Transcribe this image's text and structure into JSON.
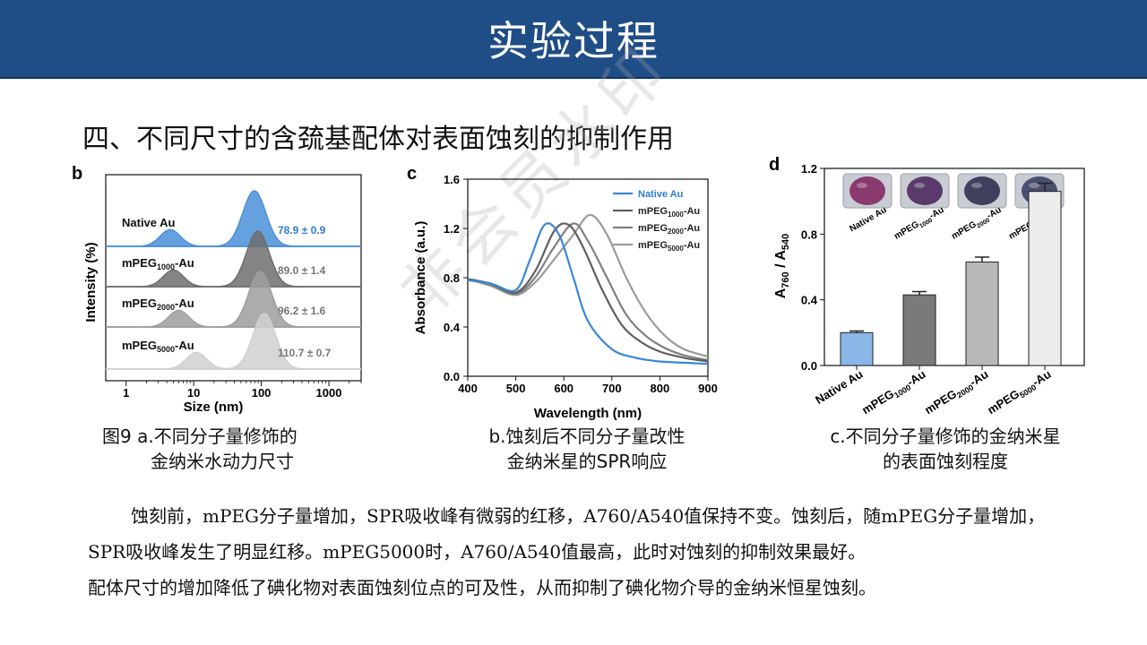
{
  "header": {
    "title": "实验过程"
  },
  "section": {
    "heading": "四、不同尺寸的含巯基配体对表面蚀刻的抑制作用"
  },
  "watermark": "非会员水印",
  "panels": {
    "b": {
      "letter": "b",
      "ylabel": "Intensity (%)",
      "xlabel": "Size (nm)",
      "x_ticks": [
        "1",
        "10",
        "100",
        "1000"
      ],
      "samples": [
        {
          "name_base": "Native Au",
          "name_sub": "",
          "name_tail": "",
          "value": "78.9 ± 0.9"
        },
        {
          "name_base": "mPEG",
          "name_sub": "1000",
          "name_tail": "-Au",
          "value": "89.0 ± 1.4"
        },
        {
          "name_base": "mPEG",
          "name_sub": "2000",
          "name_tail": "-Au",
          "value": "96.2 ± 1.6"
        },
        {
          "name_base": "mPEG",
          "name_sub": "5000",
          "name_tail": "-Au",
          "value": "110.7 ± 0.7"
        }
      ],
      "caption_line1": "图9 a.不同分子量修饰的",
      "caption_line2": "金纳米水动力尺寸"
    },
    "c": {
      "letter": "c",
      "ylabel": "Absorbance (a.u.)",
      "xlabel": "Wavelength (nm)",
      "x_ticks": [
        "400",
        "500",
        "600",
        "700",
        "800",
        "900"
      ],
      "y_ticks": [
        "0.0",
        "0.4",
        "0.8",
        "1.2",
        "1.6"
      ],
      "legend": [
        {
          "base": "Native Au",
          "sub": "",
          "tail": ""
        },
        {
          "base": "mPEG",
          "sub": "1000",
          "tail": "-Au"
        },
        {
          "base": "mPEG",
          "sub": "2000",
          "tail": "-Au"
        },
        {
          "base": "mPEG",
          "sub": "5000",
          "tail": "-Au"
        }
      ],
      "caption_line1": "b.蚀刻后不同分子量改性",
      "caption_line2": "金纳米星的SPR响应"
    },
    "d": {
      "letter": "d",
      "ylabel_base": "A",
      "ylabel_sub1": "760",
      "ylabel_mid": " / A",
      "ylabel_sub2": "540",
      "y_ticks": [
        "0.0",
        "0.4",
        "0.8",
        "1.2"
      ],
      "inset_labels": [
        {
          "base": "Native Au",
          "sub": "",
          "tail": ""
        },
        {
          "base": "mPEG",
          "sub": "1000",
          "tail": "-Au"
        },
        {
          "base": "mPEG",
          "sub": "2000",
          "tail": "-Au"
        },
        {
          "base": "mPEG",
          "sub": "5000",
          "tail": "-Au"
        }
      ],
      "caption_line1": "c.不同分子量修饰的金纳米星",
      "caption_line2": "的表面蚀刻程度"
    }
  },
  "chart_data": [
    {
      "type": "area",
      "x_scale": "log",
      "xlabel": "Size (nm)",
      "ylabel": "Intensity (%)",
      "xlim": [
        0.5,
        3000
      ],
      "series": [
        {
          "name": "Native Au",
          "peaks_nm": [
            4.5,
            78.9
          ],
          "peak_rel_heights": [
            0.3,
            1.0
          ],
          "annotation": "78.9 ± 0.9",
          "color": "#4a90d9"
        },
        {
          "name": "mPEG1000-Au",
          "peaks_nm": [
            5,
            89.0
          ],
          "peak_rel_heights": [
            0.3,
            1.0
          ],
          "annotation": "89.0 ± 1.4",
          "color": "#6f6f6f"
        },
        {
          "name": "mPEG2000-Au",
          "peaks_nm": [
            6,
            96.2
          ],
          "peak_rel_heights": [
            0.3,
            1.0
          ],
          "annotation": "96.2 ± 1.6",
          "color": "#9e9e9e"
        },
        {
          "name": "mPEG5000-Au",
          "peaks_nm": [
            11,
            110.7
          ],
          "peak_rel_heights": [
            0.3,
            1.0
          ],
          "annotation": "110.7 ± 0.7",
          "color": "#d0d0d0"
        }
      ]
    },
    {
      "type": "line",
      "xlabel": "Wavelength (nm)",
      "ylabel": "Absorbance (a.u.)",
      "xlim": [
        400,
        900
      ],
      "ylim": [
        0,
        1.6
      ],
      "legend_position": "top-right",
      "series": [
        {
          "name": "Native Au",
          "color": "#3a87d6",
          "x": [
            400,
            450,
            500,
            530,
            560,
            590,
            620,
            650,
            700,
            750,
            800,
            850,
            900
          ],
          "y": [
            0.78,
            0.75,
            0.7,
            0.95,
            1.23,
            1.15,
            0.8,
            0.45,
            0.22,
            0.15,
            0.12,
            0.11,
            0.1
          ]
        },
        {
          "name": "mPEG1000-Au",
          "color": "#5f5f5f",
          "x": [
            400,
            450,
            500,
            540,
            580,
            610,
            640,
            680,
            720,
            760,
            800,
            850,
            900
          ],
          "y": [
            0.79,
            0.75,
            0.68,
            0.85,
            1.18,
            1.23,
            1.05,
            0.7,
            0.42,
            0.28,
            0.2,
            0.15,
            0.12
          ]
        },
        {
          "name": "mPEG2000-Au",
          "color": "#7f7f7f",
          "x": [
            400,
            450,
            500,
            540,
            580,
            620,
            650,
            690,
            730,
            770,
            810,
            850,
            900
          ],
          "y": [
            0.79,
            0.74,
            0.67,
            0.8,
            1.05,
            1.24,
            1.1,
            0.8,
            0.5,
            0.33,
            0.23,
            0.17,
            0.13
          ]
        },
        {
          "name": "mPEG5000-Au",
          "color": "#9b9b9b",
          "x": [
            400,
            450,
            500,
            540,
            580,
            620,
            655,
            690,
            730,
            770,
            810,
            850,
            900
          ],
          "y": [
            0.79,
            0.73,
            0.66,
            0.76,
            0.95,
            1.15,
            1.31,
            1.15,
            0.8,
            0.52,
            0.33,
            0.22,
            0.16
          ]
        }
      ]
    },
    {
      "type": "bar",
      "ylabel": "A760 / A540",
      "ylim": [
        0,
        1.2
      ],
      "categories": [
        "Native Au",
        "mPEG1000-Au",
        "mPEG2000-Au",
        "mPEG5000-Au"
      ],
      "values": [
        0.2,
        0.43,
        0.63,
        1.06
      ],
      "errors": [
        0.01,
        0.02,
        0.03,
        0.05
      ],
      "colors": [
        "#8ab7e8",
        "#7a7a7a",
        "#b8b8b8",
        "#ececec"
      ],
      "inset_well_colors": [
        "#8a3a6e",
        "#5a3a6a",
        "#3f3f5e",
        "#4a5070"
      ]
    }
  ],
  "body": {
    "para1": "蚀刻前，mPEG分子量增加，SPR吸收峰有微弱的红移，A760/A540值保持不变。蚀刻后，随mPEG分子量增加，SPR吸收峰发生了明显红移。mPEG5000时，A760/A540值最高，此时对蚀刻的抑制效果最好。",
    "para2": "配体尺寸的增加降低了碘化物对表面蚀刻位点的可及性，从而抑制了碘化物介导的金纳米恒星蚀刻。"
  }
}
